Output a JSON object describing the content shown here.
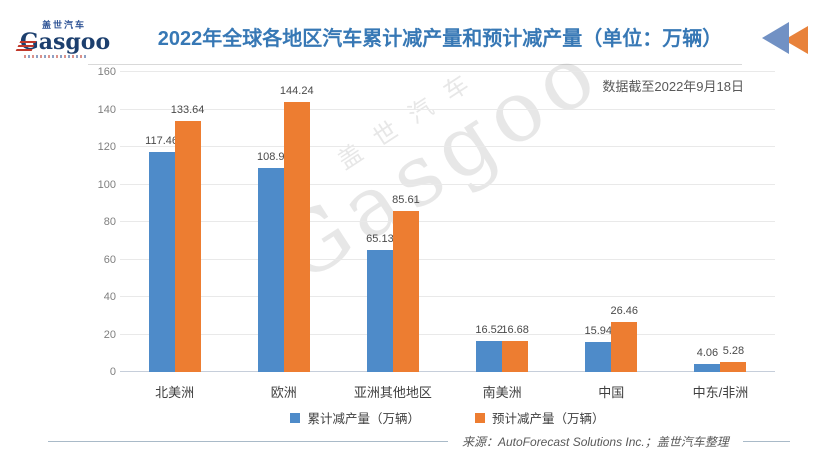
{
  "logo": {
    "brand_cn": "盖世汽车",
    "brand_en": "Gasgoo"
  },
  "header": {
    "title": "2022年全球各地区汽车累计减产量和预计减产量（单位：万辆）",
    "note": "数据截至2022年9月18日"
  },
  "chart_data": {
    "type": "bar",
    "categories": [
      "北美洲",
      "欧洲",
      "亚洲其他地区",
      "南美洲",
      "中国",
      "中东/非洲"
    ],
    "series": [
      {
        "name": "累计减产量（万辆）",
        "color": "#4E8BC9",
        "values": [
          117.46,
          108.9,
          65.13,
          16.52,
          15.94,
          4.06
        ]
      },
      {
        "name": "预计减产量（万辆）",
        "color": "#ED7D31",
        "values": [
          133.64,
          144.24,
          85.61,
          16.68,
          26.46,
          5.28
        ]
      }
    ],
    "title": "2022年全球各地区汽车累计减产量和预计减产量（单位：万辆）",
    "xlabel": "",
    "ylabel": "",
    "ylim": [
      0,
      160
    ],
    "ytick_step": 20,
    "grid": true,
    "legend_position": "bottom"
  },
  "watermark": {
    "line1": "盖世汽车",
    "line2": "Gasgoo"
  },
  "footer": {
    "source": "来源：AutoForecast Solutions Inc.；盖世汽车整理"
  },
  "colors": {
    "title_blue": "#3778B5",
    "series1_blue": "#4E8BC9",
    "series2_orange": "#ED7D31",
    "logo_navy": "#1C3F6E",
    "logo_red": "#C0392B",
    "arrow_blue": "#7191C4",
    "arrow_orange": "#E8823B"
  }
}
